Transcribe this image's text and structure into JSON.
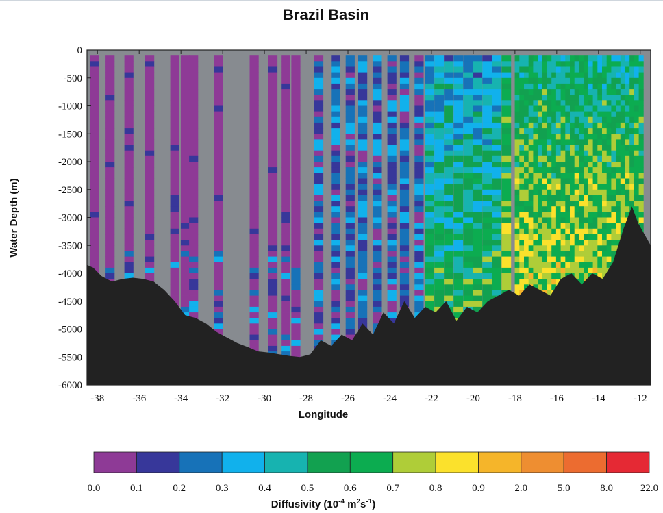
{
  "chart_data": {
    "type": "heatmap",
    "title": "Brazil Basin",
    "xlabel": "Longitude",
    "ylabel": "Water Depth (m)",
    "xlim": [
      -38.5,
      -11.5
    ],
    "ylim": [
      -6000,
      0
    ],
    "x_ticks": [
      -38,
      -36,
      -34,
      -32,
      -30,
      -28,
      -26,
      -24,
      -22,
      -20,
      -18,
      -16,
      -14,
      -12
    ],
    "x_tick_labels": [
      "-38",
      "-36",
      "-34",
      "-32",
      "-30",
      "-28",
      "-26",
      "-24",
      "-22",
      "-20",
      "-18",
      "-16",
      "-14",
      "-12"
    ],
    "y_ticks": [
      0,
      -500,
      -1000,
      -1500,
      -2000,
      -2500,
      -3000,
      -3500,
      -4000,
      -4500,
      -5000,
      -5500,
      -6000
    ],
    "y_tick_labels": [
      "0",
      "-500",
      "-1000",
      "-1500",
      "-2000",
      "-2500",
      "-3000",
      "-3500",
      "-4000",
      "-4500",
      "-5000",
      "-5500",
      "-6000"
    ],
    "colorbar": {
      "label_main": "Diffusivity (10",
      "label_exp1": "-4",
      "label_mid": " m",
      "label_exp2": "2",
      "label_s": "s",
      "label_exp3": "-1",
      "label_end": ")",
      "boundaries": [
        "0.0",
        "0.1",
        "0.2",
        "0.3",
        "0.4",
        "0.5",
        "0.6",
        "0.7",
        "0.8",
        "0.9",
        "2.0",
        "5.0",
        "8.0",
        "22.0"
      ],
      "colors": [
        "#8e3a96",
        "#37379a",
        "#1772b8",
        "#11b1ec",
        "#17b3b0",
        "#12a150",
        "#0cac50",
        "#afcd38",
        "#fbe12c",
        "#f5b52a",
        "#ee8e31",
        "#ec6c30",
        "#e52934"
      ]
    },
    "missing_color": "#878b90",
    "bathymetry_color": "#222222",
    "bathymetry": {
      "lon": [
        -38.5,
        -38.2,
        -37.8,
        -37.3,
        -36.8,
        -36.3,
        -35.8,
        -35.3,
        -34.8,
        -34.3,
        -33.8,
        -33.3,
        -32.8,
        -32.3,
        -31.8,
        -31.3,
        -30.8,
        -30.3,
        -29.8,
        -29.3,
        -28.8,
        -28.3,
        -27.8,
        -27.3,
        -26.8,
        -26.3,
        -25.8,
        -25.3,
        -24.8,
        -24.3,
        -23.8,
        -23.3,
        -22.8,
        -22.3,
        -21.8,
        -21.3,
        -20.8,
        -20.3,
        -19.8,
        -19.3,
        -18.8,
        -18.3,
        -17.8,
        -17.3,
        -16.8,
        -16.3,
        -15.8,
        -15.3,
        -14.8,
        -14.3,
        -13.8,
        -13.3,
        -12.8,
        -12.4,
        -12.1,
        -11.8,
        -11.5
      ],
      "depth": [
        -3850,
        -3900,
        -4050,
        -4150,
        -4100,
        -4080,
        -4100,
        -4150,
        -4300,
        -4500,
        -4750,
        -4800,
        -4900,
        -5050,
        -5150,
        -5250,
        -5320,
        -5400,
        -5420,
        -5450,
        -5480,
        -5500,
        -5450,
        -5200,
        -5300,
        -5100,
        -5200,
        -4900,
        -5100,
        -4700,
        -4900,
        -4500,
        -4800,
        -4600,
        -4700,
        -4500,
        -4850,
        -4600,
        -4700,
        -4500,
        -4400,
        -4300,
        -4400,
        -4200,
        -4300,
        -4400,
        -4100,
        -4000,
        -4200,
        -4000,
        -4100,
        -3800,
        -3200,
        -2800,
        -3100,
        -3300,
        -3500
      ]
    }
  }
}
